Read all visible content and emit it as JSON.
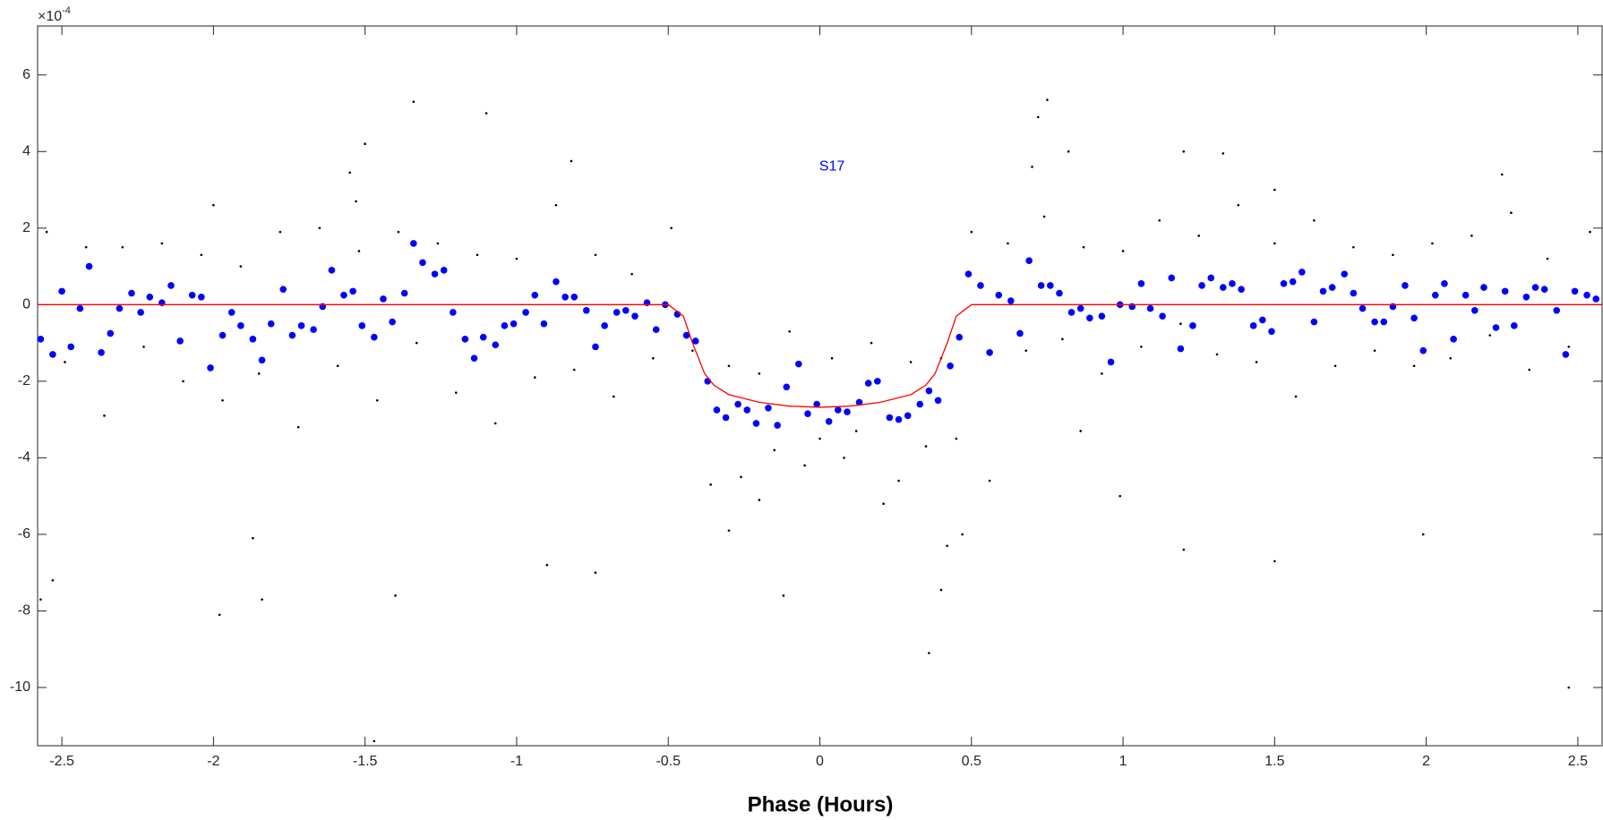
{
  "chart_data": {
    "type": "scatter",
    "x_label": "Phase (Hours)",
    "y_multiplier": "×10",
    "y_multiplier_exponent": "-4",
    "xlim": [
      -2.58,
      2.58
    ],
    "ylim": [
      -11.52,
      7.28
    ],
    "xticks": [
      -2.5,
      -2,
      -1.5,
      -1,
      -0.5,
      0,
      0.5,
      1,
      1.5,
      2,
      2.5
    ],
    "yticks": [
      -10,
      -8,
      -6,
      -4,
      -2,
      0,
      2,
      4,
      6
    ],
    "grid": false,
    "annotations": [
      {
        "text": "S17",
        "x": 0.04,
        "y": 3.6,
        "color": "#0000ff"
      }
    ],
    "series": [
      {
        "marker": "point",
        "color": "#000000",
        "x": [
          -2.55,
          -2.49,
          -2.42,
          -2.36,
          -2.3,
          -2.23,
          -2.17,
          -2.1,
          -2.04,
          -1.97,
          -1.91,
          -1.85,
          -1.78,
          -1.72,
          -1.65,
          -1.59,
          -1.52,
          -1.46,
          -1.39,
          -1.33,
          -1.26,
          -1.2,
          -1.13,
          -1.07,
          -1.0,
          -0.94,
          -0.87,
          -0.81,
          -0.74,
          -0.68,
          -0.62,
          -0.55,
          -0.49,
          -0.42,
          -0.36,
          -0.3,
          -0.26,
          -0.2,
          -0.15,
          -0.1,
          -0.05,
          0.0,
          0.04,
          0.08,
          0.12,
          0.17,
          0.21,
          0.26,
          0.3,
          0.35,
          0.4,
          0.45,
          0.5,
          0.56,
          0.62,
          0.68,
          0.74,
          0.8,
          0.87,
          0.93,
          1.0,
          1.06,
          1.12,
          1.19,
          1.25,
          1.31,
          1.38,
          1.44,
          1.5,
          1.57,
          1.63,
          1.7,
          1.76,
          1.83,
          1.89,
          1.96,
          2.02,
          2.08,
          2.15,
          2.21,
          2.28,
          2.34,
          2.4,
          2.47,
          2.54,
          -2.57,
          -2.53,
          -1.98,
          -1.84,
          -1.87,
          -1.47,
          -1.4,
          -1.34,
          -1.1,
          -0.9,
          -0.74,
          -0.82,
          -1.5,
          0.36,
          0.75,
          0.72,
          0.82,
          1.2,
          1.5,
          1.2,
          1.33,
          2.47,
          1.99,
          -0.12,
          0.4,
          0.42,
          0.47,
          0.86,
          0.99,
          -0.2,
          -0.3,
          0.7,
          1.5,
          2.25,
          -2.0,
          -1.55,
          -1.53
        ],
        "values": [
          1.9,
          -1.5,
          1.5,
          -2.9,
          1.5,
          -1.1,
          1.6,
          -2.0,
          1.3,
          -2.5,
          1.0,
          -1.8,
          1.9,
          -3.2,
          2.0,
          -1.6,
          1.4,
          -2.5,
          1.9,
          -1.0,
          1.6,
          -2.3,
          1.3,
          -3.1,
          1.2,
          -1.9,
          2.6,
          -1.7,
          1.3,
          -2.4,
          0.8,
          -1.4,
          2.0,
          -1.2,
          -4.7,
          -1.6,
          -4.5,
          -1.8,
          -3.8,
          -0.7,
          -4.2,
          -3.5,
          -1.4,
          -4.0,
          -3.3,
          -1.0,
          -5.2,
          -4.6,
          -1.5,
          -3.7,
          -1.4,
          -3.5,
          1.9,
          -4.6,
          1.6,
          -1.2,
          2.3,
          -0.9,
          1.5,
          -1.8,
          1.4,
          -1.1,
          2.2,
          -0.5,
          1.8,
          -1.3,
          2.6,
          -1.5,
          1.6,
          -2.4,
          2.2,
          -1.6,
          1.5,
          -1.2,
          1.3,
          -1.6,
          1.6,
          -1.4,
          1.8,
          -0.8,
          2.4,
          -1.7,
          1.2,
          -1.1,
          1.9,
          -7.7,
          -7.2,
          -8.1,
          -7.7,
          -6.1,
          -11.4,
          -7.6,
          5.3,
          5.0,
          -6.8,
          -7.0,
          3.75,
          4.2,
          -9.1,
          5.35,
          4.9,
          4.0,
          -6.4,
          -6.7,
          4.0,
          3.95,
          -10.0,
          -6.0,
          -7.6,
          -7.45,
          -6.3,
          -6.0,
          -3.3,
          -5.0,
          -5.1,
          -5.9,
          3.6,
          3.0,
          3.4,
          2.6,
          3.45,
          2.7
        ]
      },
      {
        "marker": "filled-circle",
        "color": "#0000ff",
        "x": [
          -2.57,
          -2.53,
          -2.5,
          -2.47,
          -2.44,
          -2.41,
          -2.37,
          -2.34,
          -2.31,
          -2.27,
          -2.24,
          -2.21,
          -2.17,
          -2.14,
          -2.11,
          -2.07,
          -2.04,
          -2.01,
          -1.97,
          -1.94,
          -1.91,
          -1.87,
          -1.84,
          -1.81,
          -1.77,
          -1.74,
          -1.71,
          -1.67,
          -1.64,
          -1.61,
          -1.57,
          -1.54,
          -1.51,
          -1.47,
          -1.44,
          -1.41,
          -1.37,
          -1.34,
          -1.31,
          -1.27,
          -1.24,
          -1.21,
          -1.17,
          -1.14,
          -1.11,
          -1.07,
          -1.04,
          -1.01,
          -0.97,
          -0.94,
          -0.91,
          -0.87,
          -0.84,
          -0.81,
          -0.77,
          -0.74,
          -0.71,
          -0.67,
          -0.64,
          -0.61,
          -0.57,
          -0.54,
          -0.51,
          -0.47,
          -0.44,
          -0.41,
          -0.37,
          -0.34,
          -0.31,
          -0.27,
          -0.24,
          -0.21,
          -0.17,
          -0.14,
          -0.11,
          -0.07,
          -0.04,
          -0.01,
          0.03,
          0.06,
          0.09,
          0.13,
          0.16,
          0.19,
          0.23,
          0.26,
          0.29,
          0.33,
          0.36,
          0.39,
          0.43,
          0.46,
          0.49,
          0.53,
          0.56,
          0.59,
          0.63,
          0.66,
          0.69,
          0.73,
          0.76,
          0.79,
          0.83,
          0.86,
          0.89,
          0.93,
          0.96,
          0.99,
          1.03,
          1.06,
          1.09,
          1.13,
          1.16,
          1.19,
          1.23,
          1.26,
          1.29,
          1.33,
          1.36,
          1.39,
          1.43,
          1.46,
          1.49,
          1.53,
          1.56,
          1.59,
          1.63,
          1.66,
          1.69,
          1.73,
          1.76,
          1.79,
          1.83,
          1.86,
          1.89,
          1.93,
          1.96,
          1.99,
          2.03,
          2.06,
          2.09,
          2.13,
          2.16,
          2.19,
          2.23,
          2.26,
          2.29,
          2.33,
          2.36,
          2.39,
          2.43,
          2.46,
          2.49,
          2.53,
          2.56
        ],
        "values": [
          -0.9,
          -1.3,
          0.35,
          -1.1,
          -0.1,
          1.0,
          -1.25,
          -0.75,
          -0.1,
          0.3,
          -0.2,
          0.2,
          0.05,
          0.5,
          -0.95,
          0.25,
          0.2,
          -1.65,
          -0.8,
          -0.2,
          -0.55,
          -0.9,
          -1.45,
          -0.5,
          0.4,
          -0.8,
          -0.55,
          -0.65,
          -0.05,
          0.9,
          0.25,
          0.35,
          -0.55,
          -0.85,
          0.15,
          -0.45,
          0.3,
          1.6,
          1.1,
          0.8,
          0.9,
          -0.2,
          -0.9,
          -1.4,
          -0.85,
          -1.05,
          -0.55,
          -0.5,
          -0.2,
          0.25,
          -0.5,
          0.6,
          0.2,
          0.2,
          -0.15,
          -1.1,
          -0.55,
          -0.2,
          -0.15,
          -0.3,
          0.05,
          -0.65,
          0.0,
          -0.25,
          -0.8,
          -0.95,
          -2.0,
          -2.75,
          -2.95,
          -2.6,
          -2.75,
          -3.1,
          -2.7,
          -3.15,
          -2.15,
          -1.55,
          -2.85,
          -2.6,
          -3.05,
          -2.75,
          -2.8,
          -2.55,
          -2.05,
          -2.0,
          -2.95,
          -3.0,
          -2.9,
          -2.6,
          -2.25,
          -2.5,
          -1.6,
          -0.85,
          0.8,
          0.5,
          -1.25,
          0.25,
          0.1,
          -0.75,
          1.15,
          0.5,
          0.5,
          0.3,
          -0.2,
          -0.1,
          -0.35,
          -0.3,
          -1.5,
          0.0,
          -0.05,
          0.55,
          -0.1,
          -0.3,
          0.7,
          -1.15,
          -0.55,
          0.5,
          0.7,
          0.45,
          0.55,
          0.4,
          -0.55,
          -0.4,
          -0.7,
          0.55,
          0.6,
          0.85,
          -0.45,
          0.35,
          0.45,
          0.8,
          0.3,
          -0.1,
          -0.45,
          -0.45,
          -0.05,
          0.5,
          -0.35,
          -1.2,
          0.25,
          0.55,
          -0.9,
          0.25,
          -0.15,
          0.45,
          -0.6,
          0.35,
          -0.55,
          0.2,
          0.45,
          0.4,
          -0.15,
          -1.3,
          0.35,
          0.25,
          0.15
        ]
      },
      {
        "marker": "line",
        "color": "#ff0000",
        "x": [
          -2.58,
          -0.5,
          -0.45,
          -0.42,
          -0.38,
          -0.35,
          -0.3,
          -0.2,
          -0.1,
          0,
          0.1,
          0.2,
          0.3,
          0.35,
          0.38,
          0.42,
          0.45,
          0.5,
          2.58
        ],
        "values": [
          0,
          0,
          -0.3,
          -1,
          -1.8,
          -2.1,
          -2.35,
          -2.55,
          -2.65,
          -2.68,
          -2.65,
          -2.55,
          -2.35,
          -2.1,
          -1.8,
          -1,
          -0.3,
          0,
          0
        ]
      }
    ]
  }
}
